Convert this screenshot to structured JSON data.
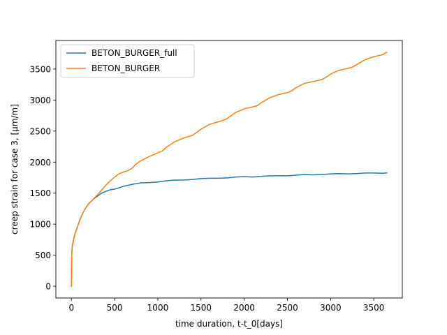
{
  "chart_data": {
    "type": "line",
    "title": "",
    "xlabel": "time duration, t-t_0[days]",
    "ylabel": "creep strain for case 3, [μm/m]",
    "xlim": [
      -180,
      3830
    ],
    "ylim": [
      -190,
      3960
    ],
    "xticks": [
      0,
      500,
      1000,
      1500,
      2000,
      2500,
      3000,
      3500
    ],
    "yticks": [
      0,
      500,
      1000,
      1500,
      2000,
      2500,
      3000,
      3500
    ],
    "grid": false,
    "legend_position": "upper-left",
    "series": [
      {
        "name": "BETON_BURGER_full",
        "color": "#1f77b4",
        "x": [
          0,
          1,
          5,
          10,
          20,
          40,
          60,
          80,
          100,
          130,
          160,
          200,
          250,
          300,
          350,
          400,
          450,
          500,
          550,
          600,
          700,
          800,
          900,
          1000,
          1100,
          1200,
          1300,
          1400,
          1500,
          1600,
          1700,
          1800,
          1900,
          2000,
          2100,
          2200,
          2300,
          2400,
          2500,
          2600,
          2700,
          2800,
          2900,
          3000,
          3100,
          3200,
          3300,
          3400,
          3500,
          3600,
          3650
        ],
        "y": [
          0,
          300,
          550,
          640,
          720,
          840,
          920,
          1000,
          1080,
          1170,
          1250,
          1330,
          1400,
          1450,
          1500,
          1530,
          1555,
          1565,
          1585,
          1610,
          1640,
          1665,
          1670,
          1680,
          1700,
          1710,
          1710,
          1720,
          1735,
          1740,
          1740,
          1745,
          1760,
          1765,
          1760,
          1770,
          1780,
          1780,
          1780,
          1790,
          1800,
          1795,
          1800,
          1810,
          1815,
          1810,
          1815,
          1825,
          1825,
          1820,
          1825
        ]
      },
      {
        "name": "BETON_BURGER",
        "color": "#ff7f0e",
        "x": [
          0,
          1,
          5,
          10,
          20,
          40,
          60,
          80,
          100,
          130,
          160,
          200,
          250,
          300,
          350,
          400,
          450,
          500,
          550,
          600,
          650,
          700,
          750,
          800,
          900,
          1000,
          1050,
          1100,
          1200,
          1300,
          1400,
          1450,
          1500,
          1600,
          1700,
          1750,
          1800,
          1900,
          2000,
          2100,
          2150,
          2200,
          2300,
          2400,
          2500,
          2550,
          2600,
          2700,
          2800,
          2900,
          2950,
          3000,
          3100,
          3200,
          3250,
          3300,
          3400,
          3500,
          3600,
          3650
        ],
        "y": [
          0,
          300,
          550,
          640,
          720,
          840,
          920,
          1000,
          1080,
          1170,
          1250,
          1330,
          1400,
          1470,
          1550,
          1630,
          1700,
          1760,
          1810,
          1840,
          1860,
          1900,
          1970,
          2020,
          2090,
          2150,
          2180,
          2240,
          2330,
          2390,
          2430,
          2480,
          2530,
          2610,
          2650,
          2670,
          2700,
          2800,
          2860,
          2890,
          2910,
          2960,
          3040,
          3090,
          3120,
          3150,
          3200,
          3270,
          3300,
          3330,
          3370,
          3420,
          3480,
          3510,
          3530,
          3570,
          3650,
          3700,
          3730,
          3770
        ]
      }
    ]
  }
}
